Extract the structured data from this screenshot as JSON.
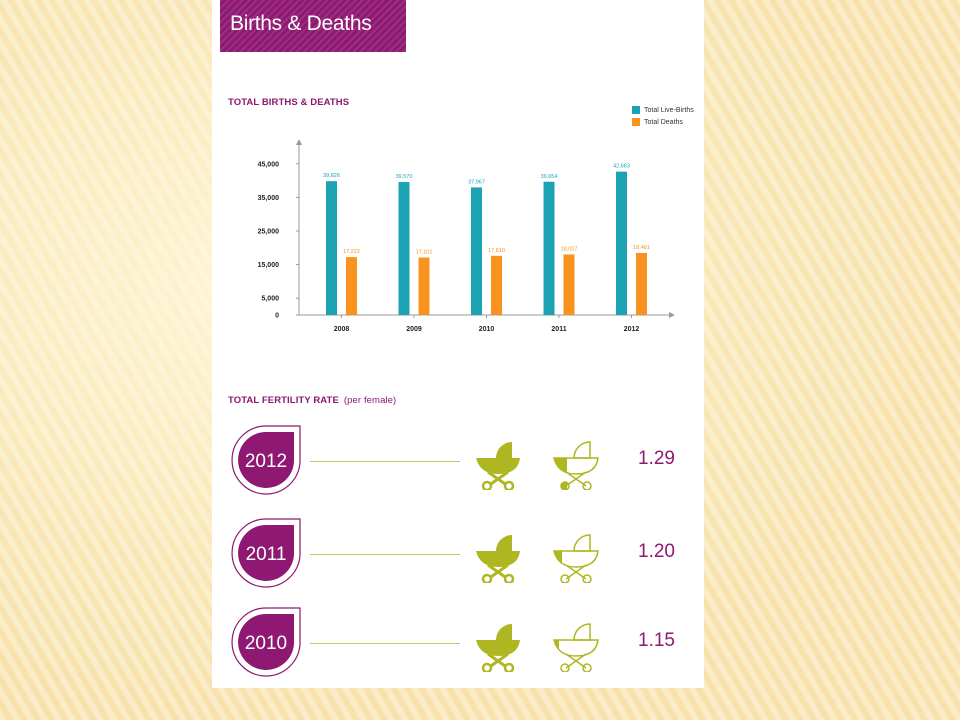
{
  "banner": {
    "title": "Births & Deaths"
  },
  "chart_section": {
    "title": "TOTAL BIRTHS & DEATHS"
  },
  "fertility_section": {
    "title": "TOTAL FERTILITY RATE",
    "subtitle": "(per female)"
  },
  "colors": {
    "brand": "#8e1872",
    "births": "#1ba3b4",
    "deaths": "#f7931e",
    "pram": "#aeb722"
  },
  "chart_data": {
    "type": "bar",
    "categories": [
      "2008",
      "2009",
      "2010",
      "2011",
      "2012"
    ],
    "series": [
      {
        "name": "Total Live-Births",
        "values": [
          39826,
          39570,
          37967,
          39654,
          42663
        ],
        "labels": [
          "39,826",
          "39,570",
          "37,967",
          "39,654",
          "42,663"
        ]
      },
      {
        "name": "Total Deaths",
        "values": [
          17222,
          17101,
          17610,
          18027,
          18481
        ],
        "labels": [
          "17,222",
          "17,101",
          "17,610",
          "18,027",
          "18,481"
        ]
      }
    ],
    "yticks": [
      0,
      5000,
      15000,
      25000,
      35000,
      45000
    ],
    "ytick_labels": [
      "0",
      "5,000",
      "15,000",
      "25,000",
      "35,000",
      "45,000"
    ],
    "ylim": [
      0,
      50000
    ],
    "title": "TOTAL BIRTHS & DEATHS",
    "legend": "top-right",
    "grid": false
  },
  "fertility": [
    {
      "year": "2012",
      "rate": "1.29",
      "value": 1.29
    },
    {
      "year": "2011",
      "rate": "1.20",
      "value": 1.2
    },
    {
      "year": "2010",
      "rate": "1.15",
      "value": 1.15
    }
  ]
}
